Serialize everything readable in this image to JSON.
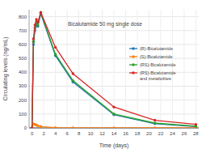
{
  "chart_data": {
    "type": "line",
    "title": "Bicalutamide 50 mg single dose",
    "x_label": "Time (days)",
    "y_label": "Circulating levels (ng/mL)",
    "x": [
      0,
      0.25,
      0.5,
      0.75,
      1,
      1.5,
      4,
      7,
      14,
      21,
      28
    ],
    "series": [
      {
        "name": "(R)-Bicalutamide",
        "color": "#1f77b4",
        "marker": "circle",
        "values": [
          0,
          600,
          700,
          740,
          730,
          820,
          520,
          330,
          95,
          30,
          10
        ]
      },
      {
        "name": "(S)-Bicalutamide",
        "color": "#ff7f0e",
        "marker": "circle",
        "values": [
          0,
          30,
          25,
          20,
          15,
          10,
          2,
          0,
          0,
          0,
          0
        ]
      },
      {
        "name": "(RS)-Bicalutamide",
        "color": "#2ca02c",
        "marker": "circle",
        "values": [
          0,
          620,
          720,
          760,
          740,
          830,
          530,
          340,
          100,
          35,
          12
        ]
      },
      {
        "name": "(RS)-Bicalutamide and metabolites",
        "color": "#d62728",
        "marker": "circle",
        "values": [
          0,
          640,
          740,
          780,
          760,
          830,
          580,
          390,
          150,
          55,
          25
        ]
      }
    ],
    "xlim": [
      -0.5,
      28.5
    ],
    "xticks": [
      0,
      2,
      4,
      6,
      8,
      10,
      12,
      14,
      16,
      18,
      20,
      22,
      24,
      26,
      28
    ],
    "ylim": [
      0,
      850
    ],
    "yticks": [
      0,
      100,
      200,
      300,
      400,
      500,
      600,
      700,
      800
    ],
    "grid": true,
    "legend": "right"
  }
}
